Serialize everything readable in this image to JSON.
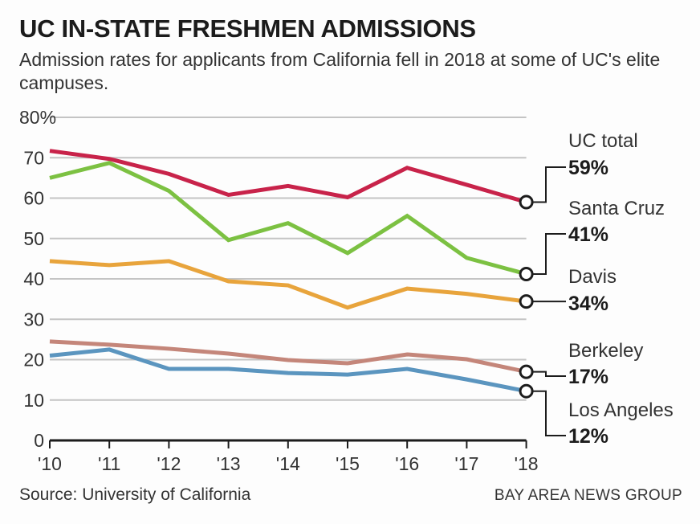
{
  "chart_data": {
    "type": "line",
    "title": "UC IN-STATE FRESHMEN ADMISSIONS",
    "subtitle": "Admission rates for applicants from California fell in 2018 at some of UC's elite campuses.",
    "xlabel": "",
    "ylabel": "",
    "x": [
      "'10",
      "'11",
      "'12",
      "'13",
      "'14",
      "'15",
      "'16",
      "'17",
      "'18"
    ],
    "yticks": [
      "0",
      "10",
      "20",
      "30",
      "40",
      "50",
      "60",
      "70",
      "80%"
    ],
    "ylim": [
      0,
      80
    ],
    "grid": true,
    "series": [
      {
        "name": "UC total",
        "label": "59%",
        "color": "#c8234a",
        "values": [
          71.7,
          69.7,
          66.0,
          60.8,
          63.0,
          60.2,
          67.5,
          63.3,
          59.0
        ]
      },
      {
        "name": "Santa Cruz",
        "label": "41%",
        "color": "#7cc142",
        "values": [
          65.0,
          68.7,
          61.8,
          49.6,
          53.8,
          46.4,
          55.6,
          45.2,
          41.2
        ]
      },
      {
        "name": "Davis",
        "label": "34%",
        "color": "#e8a43c",
        "values": [
          44.4,
          43.4,
          44.4,
          39.4,
          38.4,
          32.9,
          37.6,
          36.3,
          34.4
        ]
      },
      {
        "name": "Berkeley",
        "label": "17%",
        "color": "#c4867a",
        "values": [
          24.5,
          23.7,
          22.7,
          21.5,
          19.9,
          19.1,
          21.3,
          20.1,
          17.0
        ]
      },
      {
        "name": "Los Angeles",
        "label": "12%",
        "color": "#5b95bf",
        "values": [
          21.0,
          22.5,
          17.7,
          17.7,
          16.7,
          16.3,
          17.7,
          15.1,
          12.2
        ]
      }
    ]
  },
  "footer": {
    "source": "Source: University of California",
    "credit": "BAY AREA NEWS GROUP"
  }
}
